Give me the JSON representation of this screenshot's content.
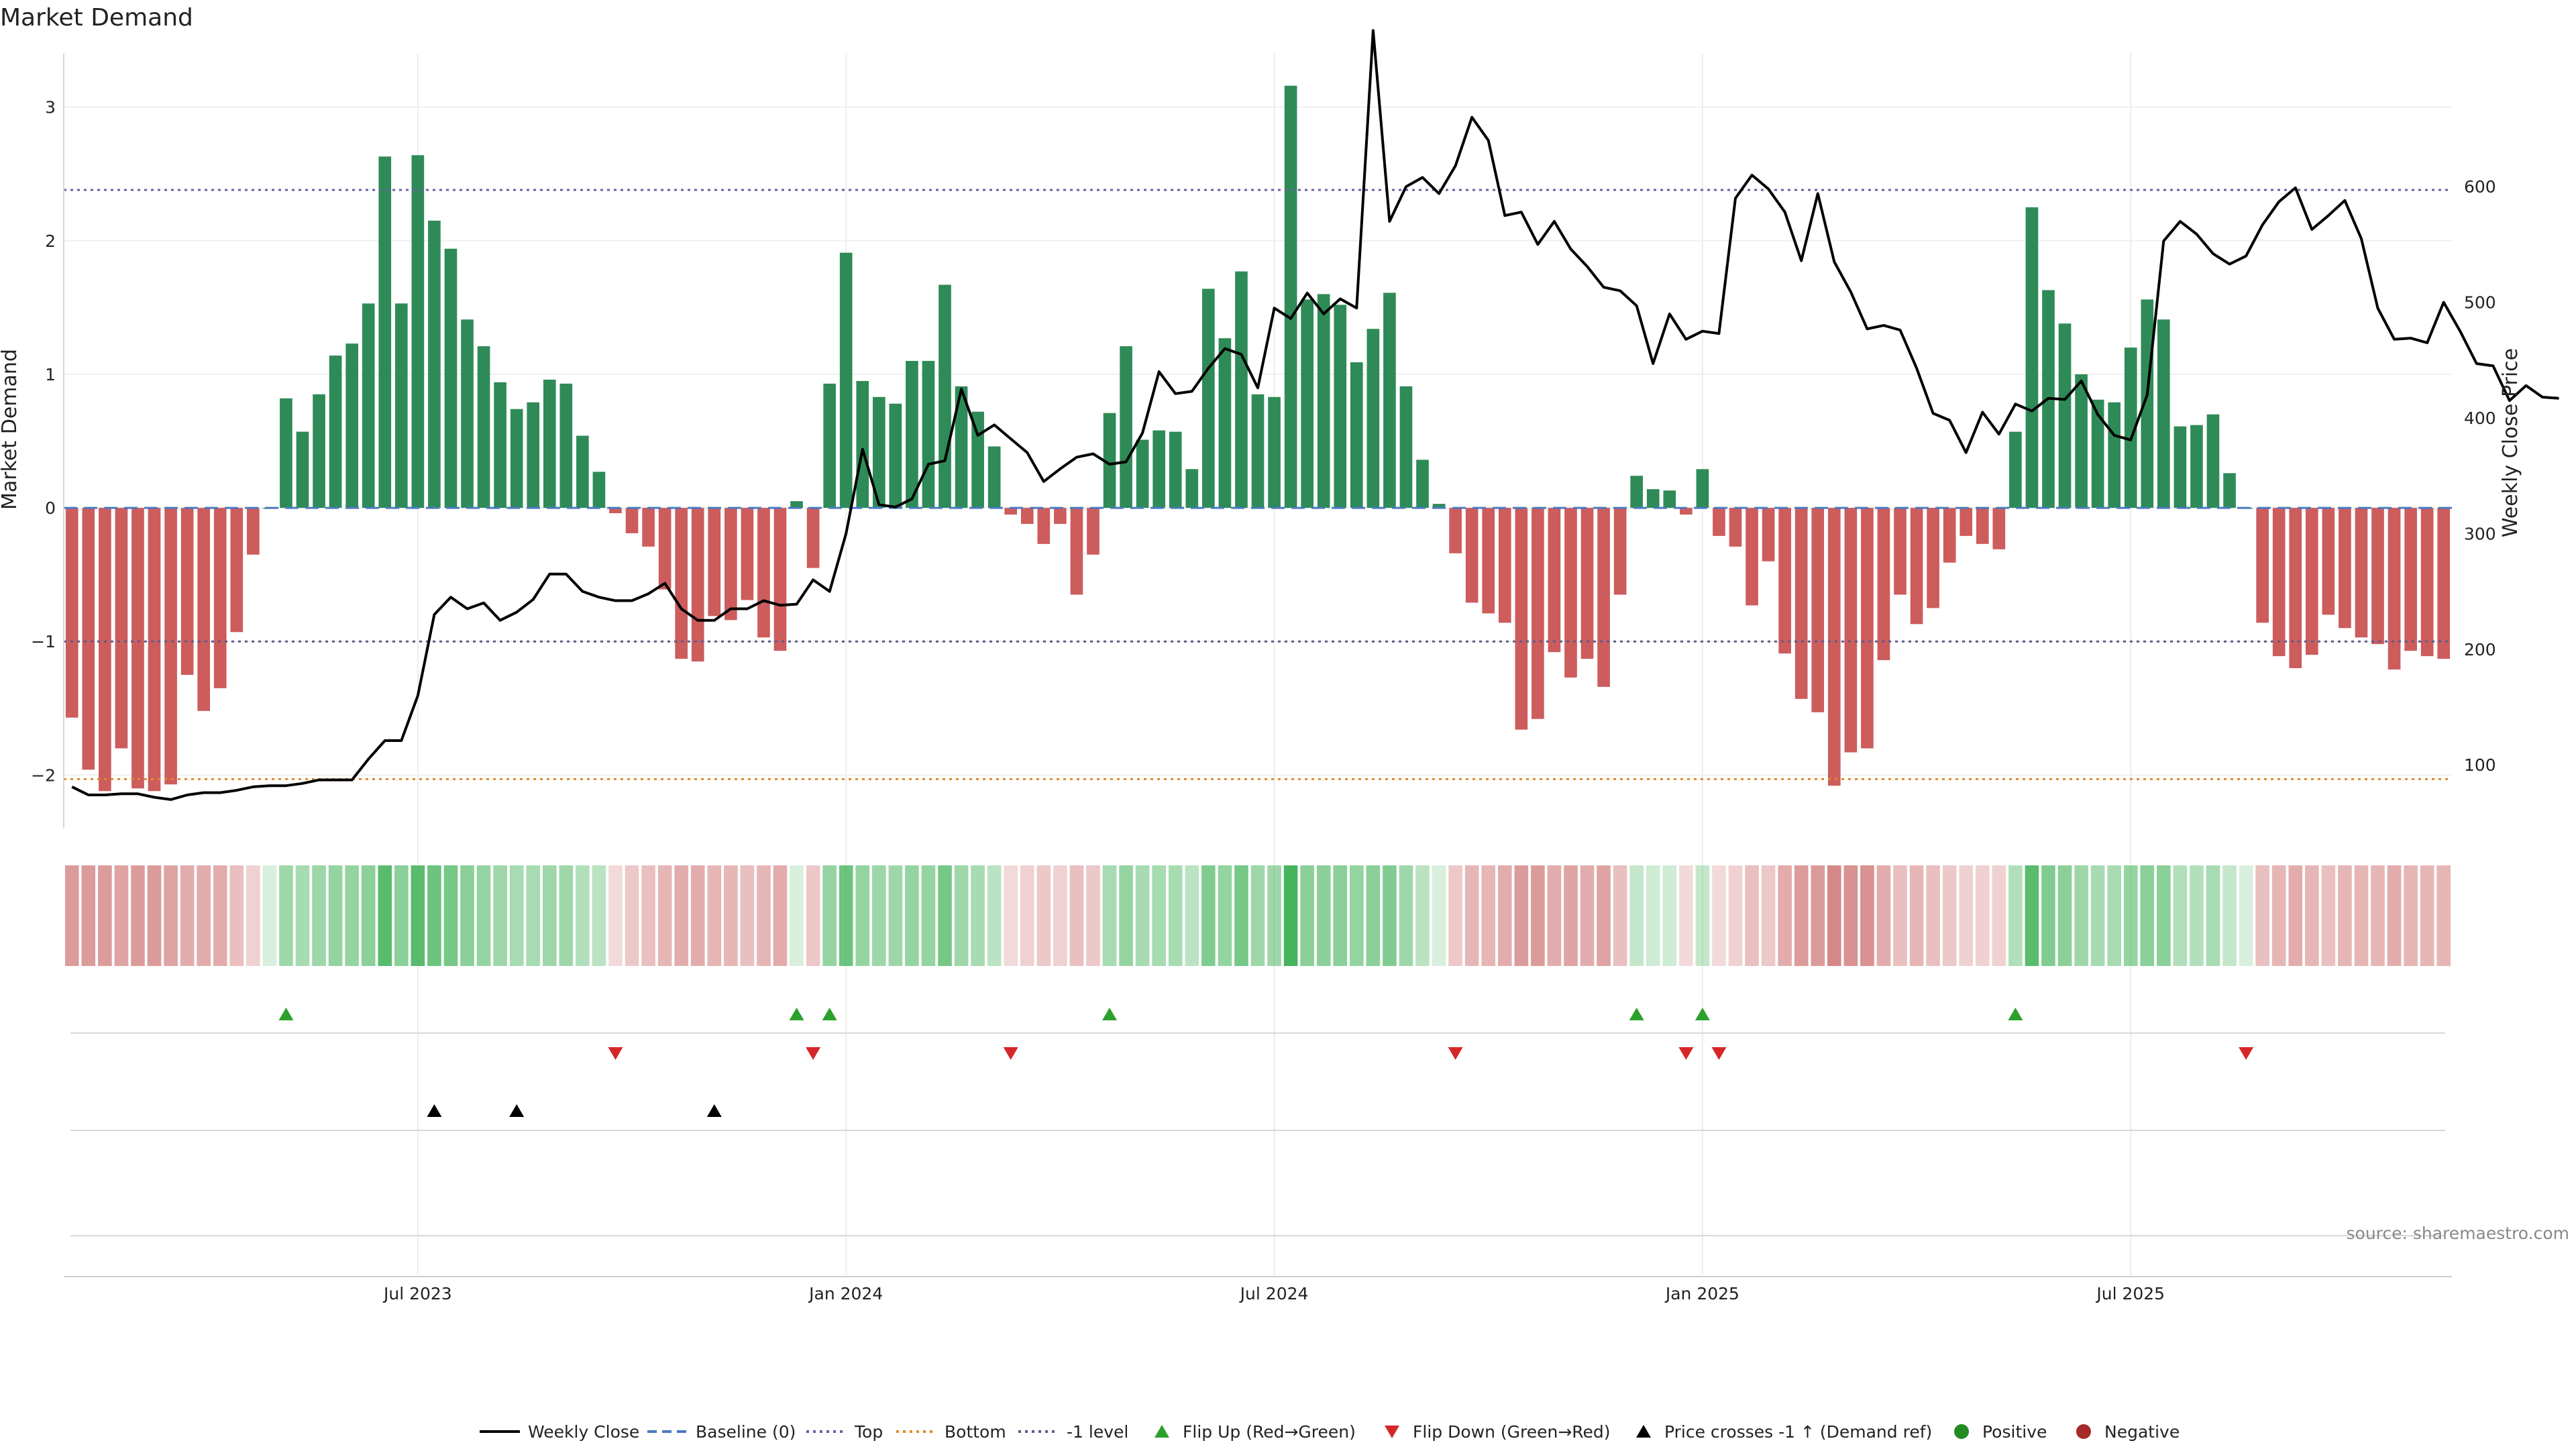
{
  "chart_data": {
    "type": "bar",
    "title": "Market Demand",
    "ylabel_left": "Market Demand",
    "ylabel_right": "Weekly Close Price",
    "source": "source: sharemaestro.com",
    "ylim_left": [
      -2.4,
      3.4
    ],
    "ylim_right": [
      45,
      715
    ],
    "y_ticks_left": [
      "−2",
      "−1",
      "0",
      "1",
      "2",
      "3"
    ],
    "y_tick_values_left": [
      -2,
      -1,
      0,
      1,
      2,
      3
    ],
    "y_ticks_right": [
      "100",
      "200",
      "300",
      "400",
      "500",
      "600"
    ],
    "y_tick_values_right": [
      100,
      200,
      300,
      400,
      500,
      600
    ],
    "x_ticks": [
      "Jul 2023",
      "Jan 2024",
      "Jul 2024",
      "Jan 2025",
      "Jul 2025"
    ],
    "x_tick_weeks": [
      21,
      47,
      73,
      99,
      125
    ],
    "reference_lines": {
      "top": 2.38,
      "bottom": -2.03,
      "minus_one": -1,
      "baseline": 0
    },
    "demand": [
      -1.57,
      -1.96,
      -2.12,
      -1.8,
      -2.1,
      -2.12,
      -2.07,
      -1.25,
      -1.52,
      -1.35,
      -0.93,
      -0.35,
      0.0,
      0.82,
      0.57,
      0.85,
      1.14,
      1.23,
      1.53,
      2.63,
      1.53,
      2.64,
      2.15,
      1.94,
      1.41,
      1.21,
      0.94,
      0.74,
      0.79,
      0.96,
      0.93,
      0.54,
      0.27,
      -0.04,
      -0.19,
      -0.29,
      -0.61,
      -1.13,
      -1.15,
      -0.81,
      -0.84,
      -0.69,
      -0.97,
      -1.07,
      0.05,
      -0.45,
      0.93,
      1.91,
      0.95,
      0.83,
      0.78,
      1.1,
      1.1,
      1.67,
      0.91,
      0.72,
      0.46,
      -0.05,
      -0.12,
      -0.27,
      -0.12,
      -0.65,
      -0.35,
      0.71,
      1.21,
      0.51,
      0.58,
      0.57,
      0.29,
      1.64,
      1.27,
      1.77,
      0.85,
      0.83,
      3.16,
      1.56,
      1.6,
      1.52,
      1.09,
      1.34,
      1.61,
      0.91,
      0.36,
      0.03,
      -0.34,
      -0.71,
      -0.79,
      -0.86,
      -1.66,
      -1.58,
      -1.08,
      -1.27,
      -1.13,
      -1.34,
      -0.65,
      0.24,
      0.14,
      0.13,
      -0.05,
      0.29,
      -0.21,
      -0.29,
      -0.73,
      -0.4,
      -1.09,
      -1.43,
      -1.53,
      -2.08,
      -1.83,
      -1.8,
      -1.14,
      -0.65,
      -0.87,
      -0.75,
      -0.41,
      -0.21,
      -0.27,
      -0.31,
      0.57,
      2.25,
      1.63,
      1.38,
      1.0,
      0.81,
      0.79,
      1.2,
      1.56,
      1.41,
      0.61,
      0.62,
      0.7,
      0.26,
      0.0,
      -0.86,
      -1.11,
      -1.2,
      -1.1,
      -0.8,
      -0.9,
      -0.97,
      -1.02,
      -1.21,
      -1.07,
      -1.11,
      -1.13
    ],
    "weekly_close": [
      81,
      74,
      74,
      75,
      75,
      72,
      70,
      74,
      76,
      76,
      78,
      81,
      82,
      82,
      84,
      87,
      87,
      87,
      105,
      121,
      121,
      160,
      230,
      245,
      235,
      240,
      225,
      232,
      243,
      265,
      265,
      250,
      245,
      242,
      242,
      248,
      257,
      235,
      225,
      225,
      235,
      235,
      242,
      238,
      239,
      260,
      250,
      300,
      373,
      325,
      323,
      330,
      360,
      363,
      425,
      385,
      394,
      382,
      370,
      345,
      356,
      366,
      369,
      360,
      362,
      387,
      440,
      421,
      423,
      443,
      460,
      455,
      426,
      495,
      486,
      508,
      490,
      503,
      495,
      735,
      570,
      600,
      608,
      594,
      618,
      660,
      640,
      575,
      578,
      550,
      570,
      546,
      531,
      513,
      510,
      497,
      447,
      490,
      468,
      475,
      473,
      590,
      610,
      598,
      578,
      536,
      594,
      535,
      509,
      477,
      480,
      476,
      443,
      404,
      398,
      370,
      405,
      386,
      412,
      406,
      417,
      416,
      432,
      403,
      385,
      381,
      420,
      553,
      570,
      559,
      542,
      533,
      540,
      567,
      587,
      599,
      563,
      575,
      588,
      555,
      495,
      468,
      469,
      465,
      500,
      475,
      447,
      445,
      415,
      428,
      418,
      417
    ],
    "shade_alpha": [
      0.55,
      0.55,
      0.55,
      0.5,
      0.55,
      0.55,
      0.5,
      0.45,
      0.45,
      0.45,
      0.35,
      0.25,
      0.2,
      0.5,
      0.45,
      0.5,
      0.55,
      0.55,
      0.6,
      0.85,
      0.6,
      0.85,
      0.75,
      0.7,
      0.6,
      0.55,
      0.5,
      0.45,
      0.45,
      0.5,
      0.5,
      0.4,
      0.35,
      0.2,
      0.3,
      0.35,
      0.4,
      0.45,
      0.45,
      0.4,
      0.4,
      0.35,
      0.4,
      0.45,
      0.2,
      0.3,
      0.55,
      0.75,
      0.55,
      0.5,
      0.5,
      0.55,
      0.55,
      0.7,
      0.5,
      0.45,
      0.35,
      0.2,
      0.25,
      0.3,
      0.25,
      0.35,
      0.3,
      0.45,
      0.55,
      0.45,
      0.45,
      0.45,
      0.35,
      0.65,
      0.55,
      0.7,
      0.5,
      0.5,
      0.95,
      0.6,
      0.6,
      0.6,
      0.55,
      0.6,
      0.65,
      0.5,
      0.35,
      0.2,
      0.3,
      0.4,
      0.4,
      0.45,
      0.55,
      0.55,
      0.45,
      0.5,
      0.45,
      0.5,
      0.35,
      0.3,
      0.25,
      0.25,
      0.2,
      0.3,
      0.2,
      0.25,
      0.35,
      0.3,
      0.45,
      0.55,
      0.55,
      0.65,
      0.6,
      0.6,
      0.45,
      0.35,
      0.4,
      0.35,
      0.3,
      0.25,
      0.25,
      0.25,
      0.4,
      0.85,
      0.65,
      0.6,
      0.5,
      0.45,
      0.45,
      0.55,
      0.6,
      0.6,
      0.4,
      0.4,
      0.45,
      0.3,
      0.2,
      0.35,
      0.4,
      0.45,
      0.4,
      0.35,
      0.4,
      0.4,
      0.4,
      0.45,
      0.4,
      0.4,
      0.4
    ],
    "flip_up_weeks": [
      13,
      44,
      46,
      63,
      95,
      99,
      118
    ],
    "flip_down_weeks": [
      33,
      45,
      57,
      84,
      98,
      100,
      132
    ],
    "price_cross_weeks": [
      22,
      27,
      39
    ],
    "colors": {
      "positive": "#2e8b57",
      "negative": "#cd5c5c",
      "price": "#000000",
      "top": "#6b5fa8",
      "bottom": "#e08a2c",
      "minus_one": "#5c5c8a",
      "baseline": "#4a7ac0",
      "flip_up": "#2ca02c",
      "flip_down": "#d62728",
      "cross": "#000000",
      "positive_dot": "#228b22",
      "negative_dot": "#a52a2a",
      "heat_pos": "#3cb054",
      "heat_neg": "#c04848"
    },
    "legend": [
      "Weekly Close",
      "Baseline (0)",
      "Top",
      "Bottom",
      "-1 level",
      "Flip Up (Red→Green)",
      "Flip Down (Green→Red)",
      "Price crosses -1 ↑ (Demand ref)",
      "Positive",
      "Negative"
    ]
  }
}
